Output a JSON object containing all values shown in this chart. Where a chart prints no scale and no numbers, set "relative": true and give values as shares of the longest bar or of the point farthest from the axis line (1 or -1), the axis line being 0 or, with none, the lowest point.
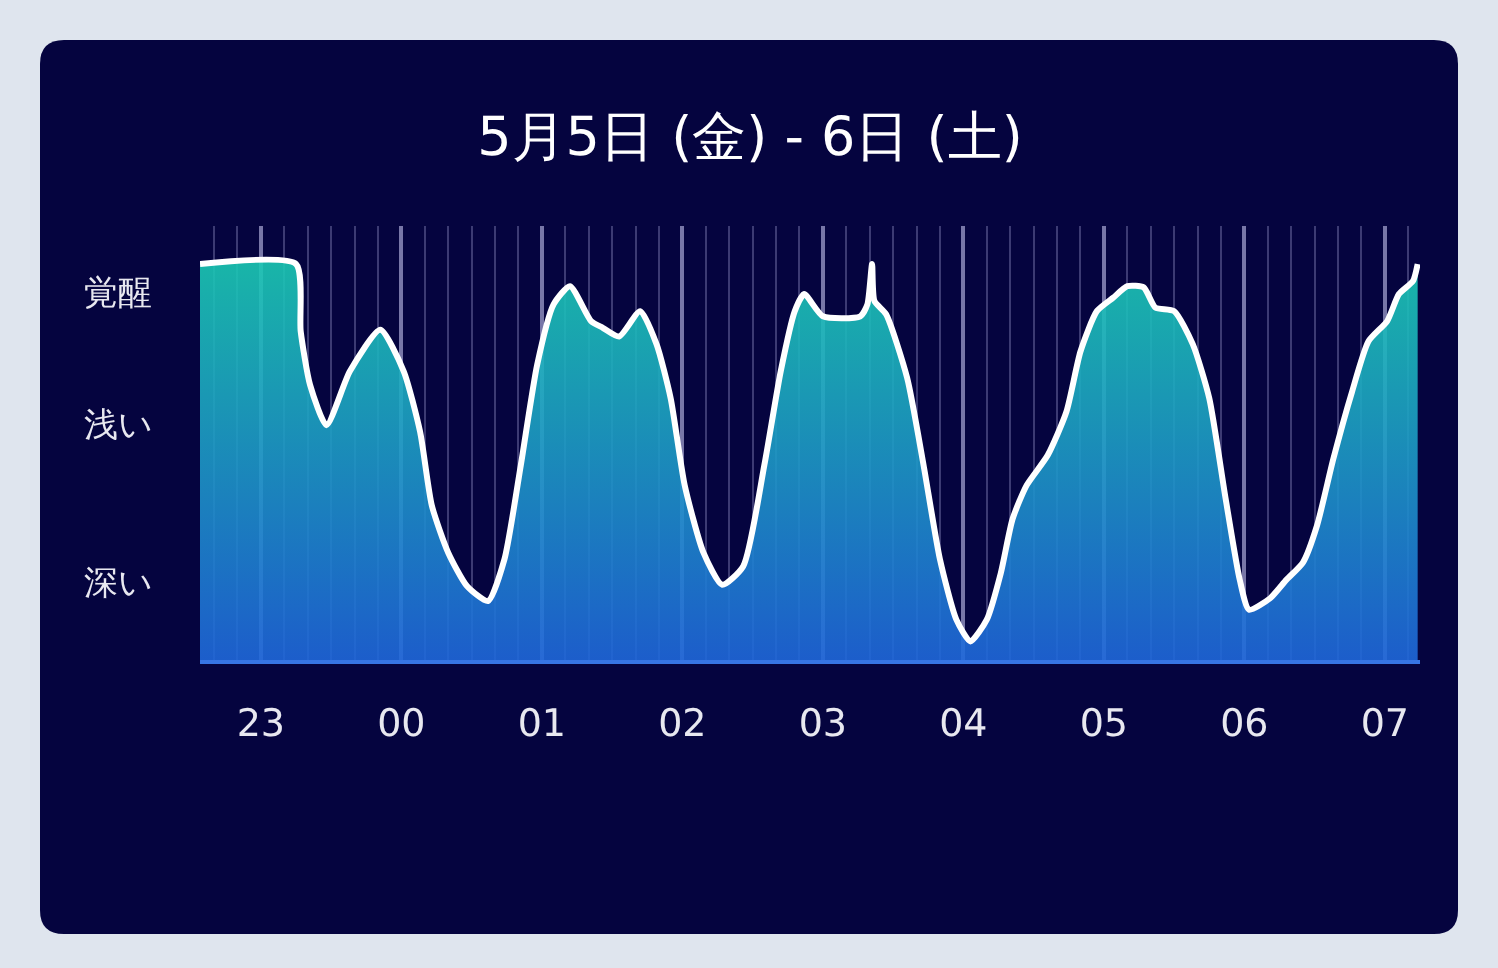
{
  "chart_data": {
    "type": "area",
    "title": "5月5日 (金) - 6日 (土)",
    "relative": true,
    "color": "#1bc9b4",
    "grid": "x",
    "x": [
      "--05-05T22:34",
      "--05-05T23:15",
      "--05-05T23:17",
      "--05-05T23:21",
      "--05-05T23:28",
      "--05-05T23:38",
      "--05-05T23:51",
      "--05-06T00:01",
      "--05-06T00:08",
      "--05-06T00:13",
      "--05-06T00:20",
      "--05-06T00:28",
      "--05-06T00:37",
      "--05-06T00:44",
      "--05-06T00:51",
      "--05-06T00:58",
      "--05-06T01:05",
      "--05-06T01:12",
      "--05-06T01:21",
      "--05-06T01:26",
      "--05-06T01:33",
      "--05-06T01:42",
      "--05-06T01:49",
      "--05-06T01:55",
      "--05-06T02:01",
      "--05-06T02:09",
      "--05-06T02:17",
      "--05-06T02:26",
      "--05-06T02:35",
      "--05-06T02:42",
      "--05-06T02:48",
      "--05-06T02:52",
      "--05-06T03:00",
      "--05-06T03:16",
      "--05-06T03:19",
      "--05-06T03:21",
      "--05-06T03:22",
      "--05-06T03:27",
      "--05-06T03:36",
      "--05-06T03:43",
      "--05-06T03:50",
      "--05-06T03:57",
      "--05-06T04:03",
      "--05-06T04:10",
      "--05-06T04:16",
      "--05-06T04:21",
      "--05-06T04:27",
      "--05-06T04:36",
      "--05-06T04:44",
      "--05-06T04:50",
      "--05-06T04:57",
      "--05-06T05:04",
      "--05-06T05:10",
      "--05-06T05:17",
      "--05-06T05:22",
      "--05-06T05:30",
      "--05-06T05:38",
      "--05-06T05:45",
      "--05-06T05:52",
      "--05-06T05:58",
      "--05-06T06:02",
      "--05-06T06:11",
      "--05-06T06:18",
      "--05-06T06:25",
      "--05-06T06:31",
      "--05-06T06:38",
      "--05-06T06:46",
      "--05-06T06:53",
      "--05-06T07:01",
      "--05-06T07:06",
      "--05-06T07:12",
      "--05-06T07:14"
    ],
    "values": [
      1.0,
      1.0,
      0.83,
      0.695,
      0.593,
      0.729,
      0.834,
      0.729,
      0.576,
      0.39,
      0.271,
      0.187,
      0.149,
      0.254,
      0.492,
      0.746,
      0.898,
      0.944,
      0.856,
      0.839,
      0.817,
      0.881,
      0.797,
      0.661,
      0.441,
      0.271,
      0.19,
      0.237,
      0.492,
      0.729,
      0.881,
      0.924,
      0.868,
      0.868,
      0.898,
      1.0,
      0.907,
      0.873,
      0.712,
      0.492,
      0.254,
      0.102,
      0.047,
      0.102,
      0.22,
      0.356,
      0.441,
      0.517,
      0.627,
      0.779,
      0.881,
      0.915,
      0.944,
      0.941,
      0.89,
      0.881,
      0.797,
      0.661,
      0.407,
      0.203,
      0.127,
      0.156,
      0.203,
      0.246,
      0.339,
      0.508,
      0.678,
      0.805,
      0.856,
      0.924,
      0.957,
      1.0
    ],
    "xlim": [
      "--05-05T22:34",
      "--05-06T07:15"
    ],
    "xticks": [
      {
        "value": "--05-05T22:40",
        "label": null
      },
      {
        "value": "--05-05T22:50",
        "label": null
      },
      {
        "value": "--05-05T23:00",
        "label": "23"
      },
      {
        "value": "--05-05T23:10",
        "label": null
      },
      {
        "value": "--05-05T23:20",
        "label": null
      },
      {
        "value": "--05-05T23:30",
        "label": null
      },
      {
        "value": "--05-05T23:40",
        "label": null
      },
      {
        "value": "--05-05T23:50",
        "label": null
      },
      {
        "value": "--05-06T00:00",
        "label": "00"
      },
      {
        "value": "--05-06T00:10",
        "label": null
      },
      {
        "value": "--05-06T00:20",
        "label": null
      },
      {
        "value": "--05-06T00:30",
        "label": null
      },
      {
        "value": "--05-06T00:40",
        "label": null
      },
      {
        "value": "--05-06T00:50",
        "label": null
      },
      {
        "value": "--05-06T01:00",
        "label": "01"
      },
      {
        "value": "--05-06T01:10",
        "label": null
      },
      {
        "value": "--05-06T01:20",
        "label": null
      },
      {
        "value": "--05-06T01:30",
        "label": null
      },
      {
        "value": "--05-06T01:40",
        "label": null
      },
      {
        "value": "--05-06T01:50",
        "label": null
      },
      {
        "value": "--05-06T02:00",
        "label": "02"
      },
      {
        "value": "--05-06T02:10",
        "label": null
      },
      {
        "value": "--05-06T02:20",
        "label": null
      },
      {
        "value": "--05-06T02:30",
        "label": null
      },
      {
        "value": "--05-06T02:40",
        "label": null
      },
      {
        "value": "--05-06T02:50",
        "label": null
      },
      {
        "value": "--05-06T03:00",
        "label": "03"
      },
      {
        "value": "--05-06T03:10",
        "label": null
      },
      {
        "value": "--05-06T03:20",
        "label": null
      },
      {
        "value": "--05-06T03:30",
        "label": null
      },
      {
        "value": "--05-06T03:40",
        "label": null
      },
      {
        "value": "--05-06T03:50",
        "label": null
      },
      {
        "value": "--05-06T04:00",
        "label": "04"
      },
      {
        "value": "--05-06T04:10",
        "label": null
      },
      {
        "value": "--05-06T04:20",
        "label": null
      },
      {
        "value": "--05-06T04:30",
        "label": null
      },
      {
        "value": "--05-06T04:40",
        "label": null
      },
      {
        "value": "--05-06T04:50",
        "label": null
      },
      {
        "value": "--05-06T05:00",
        "label": "05"
      },
      {
        "value": "--05-06T05:10",
        "label": null
      },
      {
        "value": "--05-06T05:20",
        "label": null
      },
      {
        "value": "--05-06T05:30",
        "label": null
      },
      {
        "value": "--05-06T05:40",
        "label": null
      },
      {
        "value": "--05-06T05:50",
        "label": null
      },
      {
        "value": "--05-06T06:00",
        "label": "06"
      },
      {
        "value": "--05-06T06:10",
        "label": null
      },
      {
        "value": "--05-06T06:20",
        "label": null
      },
      {
        "value": "--05-06T06:30",
        "label": null
      },
      {
        "value": "--05-06T06:40",
        "label": null
      },
      {
        "value": "--05-06T06:50",
        "label": null
      },
      {
        "value": "--05-06T07:00",
        "label": "07"
      },
      {
        "value": "--05-06T07:10",
        "label": null
      }
    ],
    "annotations": [
      "覚醒",
      "浅い",
      "深い"
    ]
  }
}
